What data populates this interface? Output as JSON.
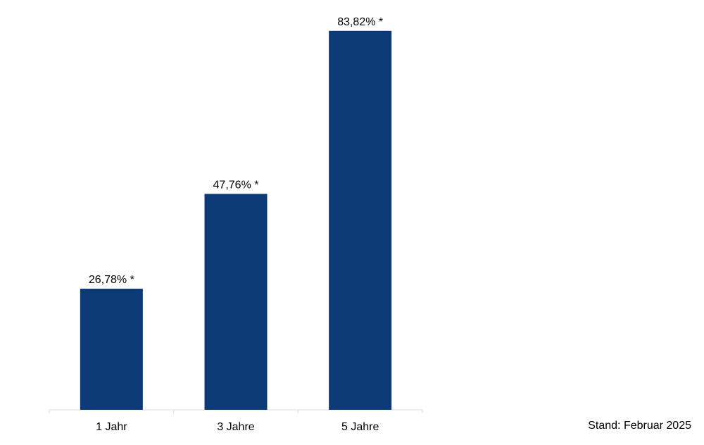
{
  "chart_data": {
    "type": "bar",
    "categories": [
      "1 Jahr",
      "3 Jahre",
      "5 Jahre"
    ],
    "values": [
      26.78,
      47.76,
      83.82
    ],
    "data_labels": [
      "26,78% *",
      "47,76% *",
      "83,82% *"
    ],
    "title": "",
    "xlabel": "",
    "ylabel": "",
    "ylim": [
      0,
      85.5
    ],
    "grid": false,
    "legend": "none"
  },
  "footnote": "Stand: Februar 2025",
  "colors": {
    "bar": "#0c3a76",
    "axis": "#d9d9d9",
    "text": "#000000"
  }
}
